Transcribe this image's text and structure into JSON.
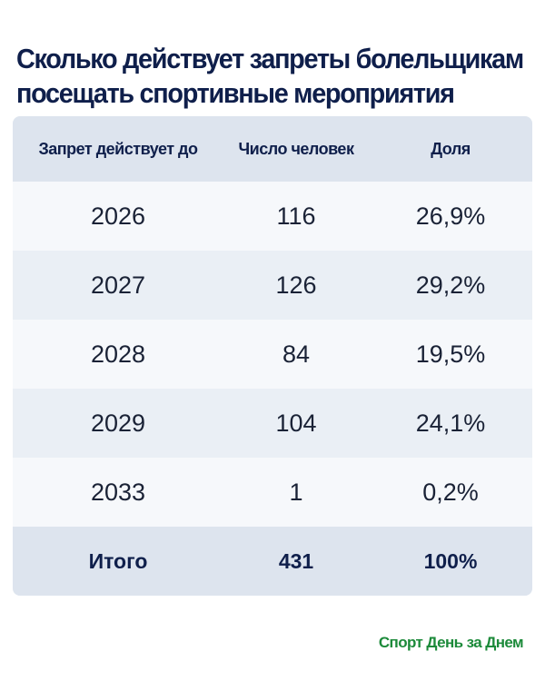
{
  "chart_data": {
    "type": "table",
    "title": "Сколько действует запреты болельщикам посещать спортивные мероприятия",
    "columns": [
      "Запрет действует до",
      "Число человек",
      "Доля"
    ],
    "rows": [
      [
        "2026",
        "116",
        "26,9%"
      ],
      [
        "2027",
        "126",
        "29,2%"
      ],
      [
        "2028",
        "84",
        "19,5%"
      ],
      [
        "2029",
        "104",
        "24,1%"
      ],
      [
        "2033",
        "1",
        "0,2%"
      ]
    ],
    "total": [
      "Итого",
      "431",
      "100%"
    ]
  },
  "header": {
    "title_line1": "Сколько действует запреты болельщикам",
    "title_line2": "посещать спортивные мероприятия"
  },
  "footer": {
    "source": "Спорт День за Днем"
  },
  "colors": {
    "title": "#0f1f4b",
    "source": "#1c8a3a",
    "header_row_bg": "#dde4ee",
    "row_bg_alt": "#eaeff5",
    "row_bg_plain": "#f6f8fb"
  }
}
